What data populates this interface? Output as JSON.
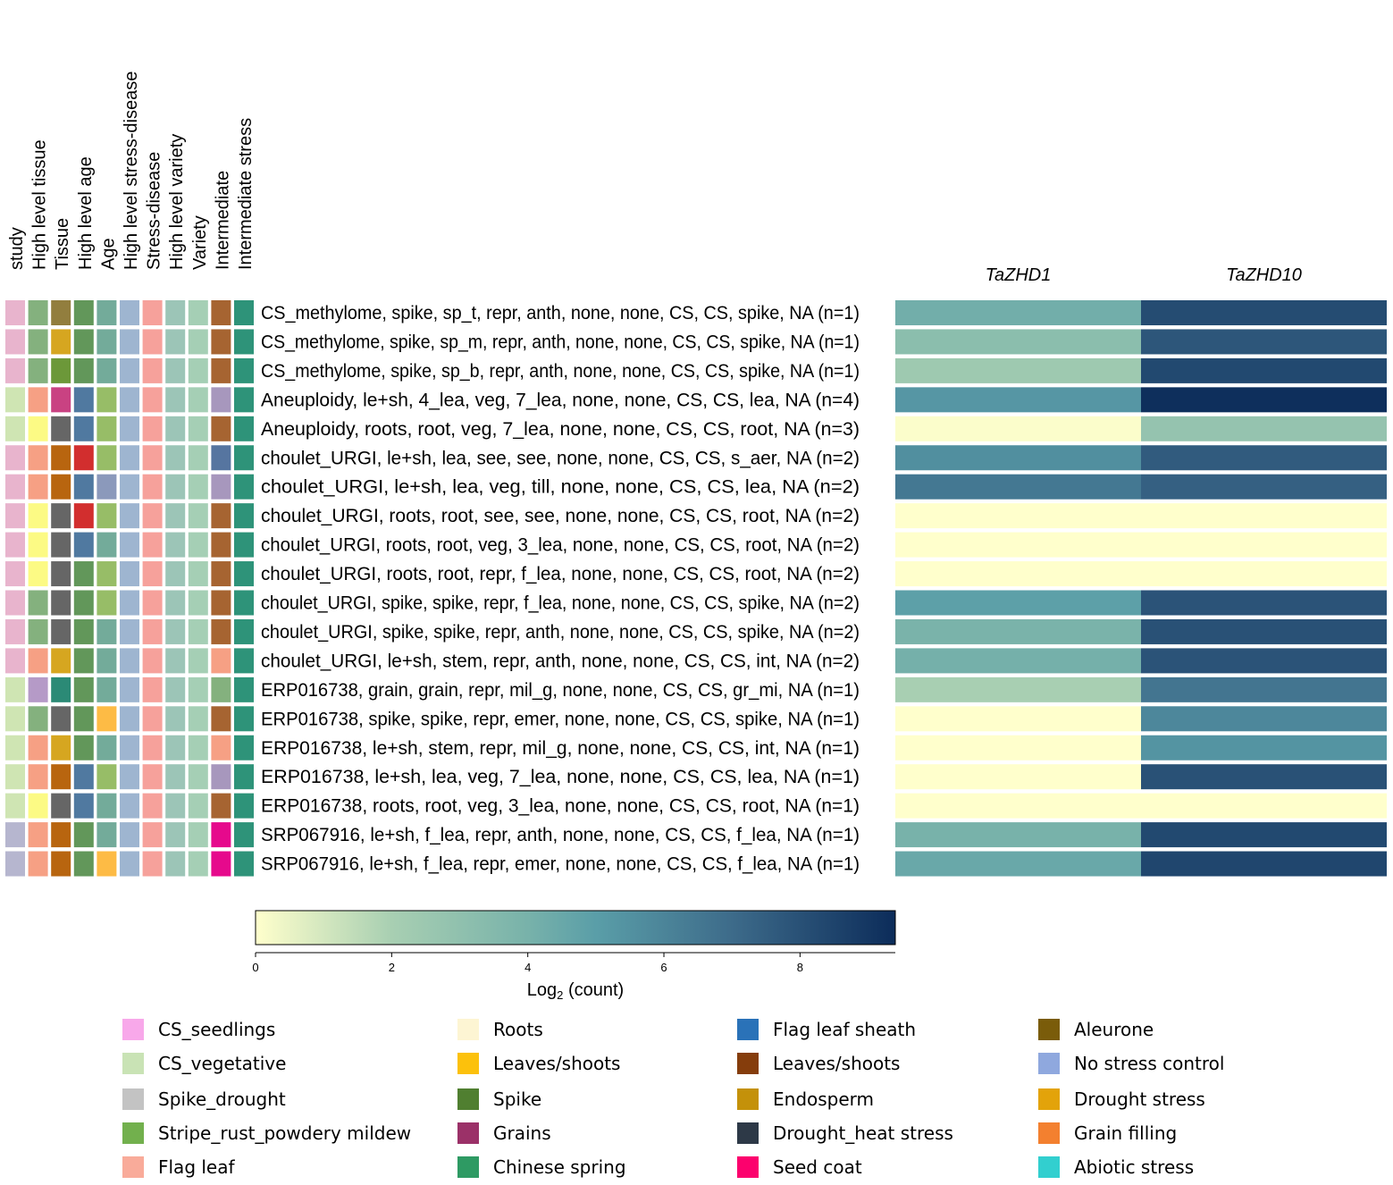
{
  "chart_data": {
    "type": "heatmap",
    "title": "",
    "annotation_columns": [
      "study",
      "High level tissue",
      "Tissue",
      "High level age",
      "Age",
      "High level stress-disease",
      "Stress-disease",
      "High level variety",
      "Variety",
      "Intermediate",
      "Intermediate stress"
    ],
    "genes": [
      "TaZHD1",
      "TaZHD10"
    ],
    "rows": [
      {
        "label": "CS_methylome, spike, sp_t, repr, anth, none, none, CS, CS, spike, NA (n=1)",
        "annot": [
          "#e8b4cd",
          "#84b17e",
          "#927e3e",
          "#62975a",
          "#73ab9a",
          "#9eb5d0",
          "#f6a19b",
          "#9cc5b7",
          "#a5cfb5",
          "#a66431",
          "#2e9379"
        ],
        "values": [
          4.2,
          8.2
        ]
      },
      {
        "label": "CS_methylome, spike, sp_m, repr, anth, none, none, CS, CS, spike, NA (n=1)",
        "annot": [
          "#e8b4cd",
          "#84b17e",
          "#d6a620",
          "#62975a",
          "#73ab9a",
          "#9eb5d0",
          "#f6a19b",
          "#9cc5b7",
          "#a5cfb5",
          "#a66431",
          "#2e9379"
        ],
        "values": [
          3.2,
          7.8
        ]
      },
      {
        "label": "CS_methylome, spike, sp_b, repr, anth, none, none, CS, CS, spike, NA (n=1)",
        "annot": [
          "#e8b4cd",
          "#84b17e",
          "#6c9839",
          "#62975a",
          "#73ab9a",
          "#9eb5d0",
          "#f6a19b",
          "#9cc5b7",
          "#a5cfb5",
          "#a66431",
          "#2e9379"
        ],
        "values": [
          2.4,
          8.3
        ]
      },
      {
        "label": "Aneuploidy, le+sh, 4_lea, veg, 7_lea, none, none, CS, CS, lea, NA (n=4)",
        "annot": [
          "#cfe5b3",
          "#f6a084",
          "#c94282",
          "#5079a0",
          "#97bd67",
          "#9eb5d0",
          "#f6a19b",
          "#9cc5b7",
          "#a5cfb5",
          "#a797bd",
          "#2e9379"
        ],
        "values": [
          5.3,
          9.3
        ]
      },
      {
        "label": "Aneuploidy, roots, root, veg, 7_lea, none, none, CS, CS, root, NA (n=3)",
        "annot": [
          "#cfe5b3",
          "#fcfa84",
          "#666666",
          "#5079a0",
          "#97bd67",
          "#9eb5d0",
          "#f6a19b",
          "#9cc5b7",
          "#a5cfb5",
          "#a66431",
          "#2e9379"
        ],
        "values": [
          0.1,
          2.8
        ]
      },
      {
        "label": "choulet_URGI, le+sh, lea, see, see, none, none, CS, CS, s_aer, NA (n=2)",
        "annot": [
          "#e8b4cd",
          "#f6a084",
          "#b8650f",
          "#d22e2e",
          "#97bd67",
          "#9eb5d0",
          "#f6a19b",
          "#9cc5b7",
          "#a5cfb5",
          "#5675a0",
          "#2e9379"
        ],
        "values": [
          5.6,
          7.6
        ]
      },
      {
        "label": "choulet_URGI, le+sh, lea, veg, till, none, none, CS, CS, lea, NA (n=2)",
        "annot": [
          "#e8b4cd",
          "#f6a084",
          "#b8650f",
          "#5079a0",
          "#8b99bb",
          "#9eb5d0",
          "#f6a19b",
          "#9cc5b7",
          "#a5cfb5",
          "#a797bd",
          "#2e9379"
        ],
        "values": [
          6.5,
          7.4
        ]
      },
      {
        "label": "choulet_URGI, roots, root, see, see, none, none, CS, CS, root, NA (n=2)",
        "annot": [
          "#e8b4cd",
          "#fcfa84",
          "#666666",
          "#d22e2e",
          "#97bd67",
          "#9eb5d0",
          "#f6a19b",
          "#9cc5b7",
          "#a5cfb5",
          "#a66431",
          "#2e9379"
        ],
        "values": [
          0.0,
          0.0
        ]
      },
      {
        "label": "choulet_URGI, roots, root, veg, 3_lea, none, none, CS, CS, root, NA (n=2)",
        "annot": [
          "#e8b4cd",
          "#fcfa84",
          "#666666",
          "#5079a0",
          "#73ab9a",
          "#9eb5d0",
          "#f6a19b",
          "#9cc5b7",
          "#a5cfb5",
          "#a66431",
          "#2e9379"
        ],
        "values": [
          0.0,
          0.0
        ]
      },
      {
        "label": "choulet_URGI, roots, root, repr, f_lea, none, none, CS, CS, root, NA (n=2)",
        "annot": [
          "#e8b4cd",
          "#fcfa84",
          "#666666",
          "#62975a",
          "#97bd67",
          "#9eb5d0",
          "#f6a19b",
          "#9cc5b7",
          "#a5cfb5",
          "#a66431",
          "#2e9379"
        ],
        "values": [
          0.0,
          0.0
        ]
      },
      {
        "label": "choulet_URGI, spike, spike, repr, f_lea, none, none, CS, CS, spike, NA (n=2)",
        "annot": [
          "#e8b4cd",
          "#84b17e",
          "#666666",
          "#62975a",
          "#97bd67",
          "#9eb5d0",
          "#f6a19b",
          "#9cc5b7",
          "#a5cfb5",
          "#a66431",
          "#2e9379"
        ],
        "values": [
          4.9,
          7.9
        ]
      },
      {
        "label": "choulet_URGI, spike, spike, repr, anth, none, none, CS, CS, spike, NA (n=2)",
        "annot": [
          "#e8b4cd",
          "#84b17e",
          "#666666",
          "#62975a",
          "#73ab9a",
          "#9eb5d0",
          "#f6a19b",
          "#9cc5b7",
          "#a5cfb5",
          "#a66431",
          "#2e9379"
        ],
        "values": [
          3.9,
          8.0
        ]
      },
      {
        "label": "choulet_URGI, le+sh, stem, repr, anth, none, none, CS, CS, int, NA (n=2)",
        "annot": [
          "#e8b4cd",
          "#f6a084",
          "#d6a620",
          "#62975a",
          "#73ab9a",
          "#9eb5d0",
          "#f6a19b",
          "#9cc5b7",
          "#a5cfb5",
          "#f6a084",
          "#2e9379"
        ],
        "values": [
          4.1,
          7.9
        ]
      },
      {
        "label": "ERP016738, grain, grain, repr, mil_g, none, none, CS, CS, gr_mi, NA (n=1)",
        "annot": [
          "#cfe5b3",
          "#b59ac7",
          "#2b8a76",
          "#62975a",
          "#73ab9a",
          "#9eb5d0",
          "#f6a19b",
          "#9cc5b7",
          "#a5cfb5",
          "#84b17e",
          "#2e9379"
        ],
        "values": [
          2.0,
          6.6
        ]
      },
      {
        "label": "ERP016738, spike, spike, repr, emer, none, none, CS, CS, spike, NA (n=1)",
        "annot": [
          "#cfe5b3",
          "#84b17e",
          "#666666",
          "#62975a",
          "#fdbb45",
          "#9eb5d0",
          "#f6a19b",
          "#9cc5b7",
          "#a5cfb5",
          "#a66431",
          "#2e9379"
        ],
        "values": [
          0.0,
          5.9
        ]
      },
      {
        "label": "ERP016738, le+sh, stem, repr, mil_g, none, none, CS, CS, int, NA (n=1)",
        "annot": [
          "#cfe5b3",
          "#f6a084",
          "#d6a620",
          "#62975a",
          "#73ab9a",
          "#9eb5d0",
          "#f6a19b",
          "#9cc5b7",
          "#a5cfb5",
          "#f6a084",
          "#2e9379"
        ],
        "values": [
          0.0,
          5.4
        ]
      },
      {
        "label": "ERP016738, le+sh, lea, veg, 7_lea, none, none, CS, CS, lea, NA (n=1)",
        "annot": [
          "#cfe5b3",
          "#f6a084",
          "#b8650f",
          "#5079a0",
          "#97bd67",
          "#9eb5d0",
          "#f6a19b",
          "#9cc5b7",
          "#a5cfb5",
          "#a797bd",
          "#2e9379"
        ],
        "values": [
          0.0,
          8.0
        ]
      },
      {
        "label": "ERP016738, roots, root, veg, 3_lea, none, none, CS, CS, root, NA (n=1)",
        "annot": [
          "#cfe5b3",
          "#fcfa84",
          "#666666",
          "#5079a0",
          "#73ab9a",
          "#9eb5d0",
          "#f6a19b",
          "#9cc5b7",
          "#a5cfb5",
          "#a66431",
          "#2e9379"
        ],
        "values": [
          0.0,
          0.0
        ]
      },
      {
        "label": "SRP067916, le+sh, f_lea, repr, anth, none, none, CS, CS, f_lea, NA (n=1)",
        "annot": [
          "#b6b6cf",
          "#f6a084",
          "#b8650f",
          "#62975a",
          "#73ab9a",
          "#9eb5d0",
          "#f6a19b",
          "#9cc5b7",
          "#a5cfb5",
          "#e6098c",
          "#2e9379"
        ],
        "values": [
          4.0,
          8.3
        ]
      },
      {
        "label": "SRP067916, le+sh, f_lea, repr, emer, none, none, CS, CS, f_lea, NA (n=1)",
        "annot": [
          "#b6b6cf",
          "#f6a084",
          "#b8650f",
          "#62975a",
          "#fdbb45",
          "#9eb5d0",
          "#f6a19b",
          "#9cc5b7",
          "#a5cfb5",
          "#e6098c",
          "#2e9379"
        ],
        "values": [
          4.5,
          8.4
        ]
      }
    ],
    "colorbar": {
      "label_prefix": "Log",
      "label_sub": "2",
      "label_suffix": " (count)",
      "range": [
        0,
        9.4
      ],
      "ticks": [
        0,
        2,
        4,
        6,
        8
      ],
      "stops": [
        {
          "v": 0,
          "c": "#ffffcc"
        },
        {
          "v": 2,
          "c": "#a8cfb2"
        },
        {
          "v": 4,
          "c": "#78b2aa"
        },
        {
          "v": 5,
          "c": "#5a9ea8"
        },
        {
          "v": 7,
          "c": "#3d6b8a"
        },
        {
          "v": 9.4,
          "c": "#0c2c5a"
        }
      ]
    },
    "legend": [
      {
        "label": "CS_seedlings",
        "color": "#f8a8ea"
      },
      {
        "label": "CS_vegetative",
        "color": "#c9e3b5"
      },
      {
        "label": "Spike_drought",
        "color": "#c3c3c3"
      },
      {
        "label": "Stripe_rust_powdery mildew",
        "color": "#72b04d"
      },
      {
        "label": "Flag leaf",
        "color": "#f9ab9a"
      },
      {
        "label": "Roots",
        "color": "#fdf5d3"
      },
      {
        "label": "Leaves/shoots",
        "color": "#fcc10c"
      },
      {
        "label": "Spike",
        "color": "#507f30"
      },
      {
        "label": "Grains",
        "color": "#9b3168"
      },
      {
        "label": "Chinese spring",
        "color": "#2e9a63"
      },
      {
        "label": "Flag leaf sheath",
        "color": "#2a72b8"
      },
      {
        "label": "Leaves/shoots",
        "color": "#853d0c"
      },
      {
        "label": "Endosperm",
        "color": "#c4910a"
      },
      {
        "label": "Drought_heat stress",
        "color": "#2d3947"
      },
      {
        "label": "Seed coat",
        "color": "#fc016d"
      },
      {
        "label": "Aleurone",
        "color": "#7a5c0a"
      },
      {
        "label": "No stress control",
        "color": "#8fa8de"
      },
      {
        "label": "Drought stress",
        "color": "#e3a30a"
      },
      {
        "label": "Grain filling",
        "color": "#f3802f"
      },
      {
        "label": "Abiotic stress",
        "color": "#32cfcf"
      }
    ]
  }
}
